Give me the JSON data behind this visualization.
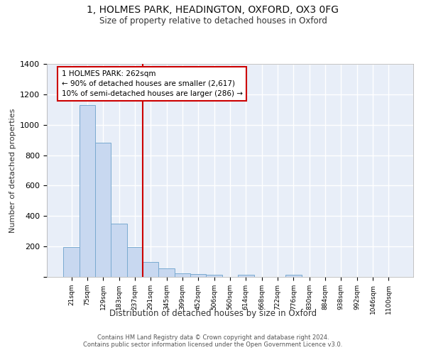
{
  "title1": "1, HOLMES PARK, HEADINGTON, OXFORD, OX3 0FG",
  "title2": "Size of property relative to detached houses in Oxford",
  "xlabel": "Distribution of detached houses by size in Oxford",
  "ylabel": "Number of detached properties",
  "bar_color": "#c8d8f0",
  "bar_edge_color": "#7aaad0",
  "background_color": "#e8eef8",
  "grid_color": "#ffffff",
  "categories": [
    "21sqm",
    "75sqm",
    "129sqm",
    "183sqm",
    "237sqm",
    "291sqm",
    "345sqm",
    "399sqm",
    "452sqm",
    "506sqm",
    "560sqm",
    "614sqm",
    "668sqm",
    "722sqm",
    "776sqm",
    "830sqm",
    "884sqm",
    "938sqm",
    "992sqm",
    "1046sqm",
    "1100sqm"
  ],
  "values": [
    195,
    1130,
    880,
    350,
    195,
    100,
    55,
    22,
    18,
    15,
    0,
    12,
    0,
    0,
    12,
    0,
    0,
    0,
    0,
    0,
    0
  ],
  "red_line_x": 4.5,
  "annotation_text": "1 HOLMES PARK: 262sqm\n← 90% of detached houses are smaller (2,617)\n10% of semi-detached houses are larger (286) →",
  "annotation_box_color": "#ffffff",
  "annotation_box_edge": "#cc0000",
  "footnote": "Contains HM Land Registry data © Crown copyright and database right 2024.\nContains public sector information licensed under the Open Government Licence v3.0.",
  "ylim": [
    0,
    1400
  ],
  "yticks": [
    0,
    200,
    400,
    600,
    800,
    1000,
    1200,
    1400
  ]
}
